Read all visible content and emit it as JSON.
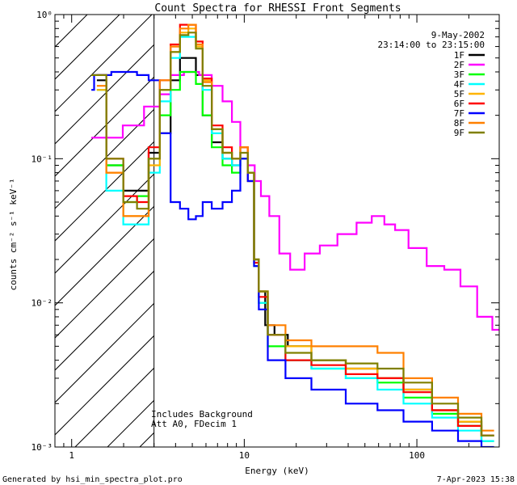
{
  "chart_data": {
    "type": "line",
    "title": "Count Spectra for RHESSI Front Segments",
    "xlabel": "Energy (keV)",
    "ylabel": "counts cm⁻² s⁻¹ keV⁻¹",
    "xscale": "log",
    "yscale": "log",
    "xlim": [
      0.8,
      300
    ],
    "ylim": [
      0.001,
      1.0
    ],
    "x_tick_labels": [
      "1",
      "10",
      "100"
    ],
    "y_tick_labels": [
      "10⁻³",
      "10⁻²",
      "10⁻¹",
      "10⁰"
    ],
    "date": "9-May-2002",
    "time_range": "23:14:00 to 23:15:00",
    "annotations": [
      "Includes Background",
      "Att A0, FDecim 1"
    ],
    "footer_left": "Generated by hsi_min_spectra_plot.pro",
    "footer_right": "7-Apr-2023 15:38",
    "shaded_region": [
      0.8,
      3.0
    ],
    "series": [
      {
        "name": "1F",
        "color": "#000000",
        "points": [
          [
            1.4,
            0.35
          ],
          [
            1.8,
            0.09
          ],
          [
            2.2,
            0.06
          ],
          [
            2.6,
            0.06
          ],
          [
            3,
            0.11
          ],
          [
            3.5,
            0.15
          ],
          [
            4,
            0.35
          ],
          [
            4.5,
            0.5
          ],
          [
            5,
            0.5
          ],
          [
            5.5,
            0.38
          ],
          [
            6,
            0.2
          ],
          [
            7,
            0.13
          ],
          [
            8,
            0.1
          ],
          [
            9,
            0.09
          ],
          [
            10,
            0.1
          ],
          [
            11,
            0.08
          ],
          [
            11.8,
            0.02
          ],
          [
            12.5,
            0.012
          ],
          [
            14,
            0.007
          ],
          [
            16,
            0.006
          ],
          [
            20,
            0.005
          ],
          [
            30,
            0.004
          ],
          [
            50,
            0.0035
          ],
          [
            70,
            0.003
          ],
          [
            100,
            0.0025
          ],
          [
            150,
            0.0018
          ],
          [
            200,
            0.0015
          ],
          [
            280,
            0.0012
          ]
        ]
      },
      {
        "name": "2F",
        "color": "#ff00ff",
        "points": [
          [
            1.3,
            0.14
          ],
          [
            1.7,
            0.14
          ],
          [
            2.3,
            0.17
          ],
          [
            3,
            0.23
          ],
          [
            3.5,
            0.28
          ],
          [
            4,
            0.38
          ],
          [
            5,
            0.4
          ],
          [
            6,
            0.38
          ],
          [
            7,
            0.32
          ],
          [
            8,
            0.25
          ],
          [
            9,
            0.18
          ],
          [
            10,
            0.12
          ],
          [
            11,
            0.09
          ],
          [
            12,
            0.07
          ],
          [
            13,
            0.055
          ],
          [
            15,
            0.04
          ],
          [
            17,
            0.022
          ],
          [
            20,
            0.017
          ],
          [
            25,
            0.022
          ],
          [
            30,
            0.025
          ],
          [
            40,
            0.03
          ],
          [
            50,
            0.036
          ],
          [
            60,
            0.04
          ],
          [
            70,
            0.035
          ],
          [
            80,
            0.032
          ],
          [
            100,
            0.024
          ],
          [
            130,
            0.018
          ],
          [
            160,
            0.017
          ],
          [
            200,
            0.013
          ],
          [
            250,
            0.008
          ],
          [
            300,
            0.0065
          ]
        ]
      },
      {
        "name": "3F",
        "color": "#00ff00",
        "points": [
          [
            1.4,
            0.3
          ],
          [
            1.8,
            0.09
          ],
          [
            2.2,
            0.05
          ],
          [
            2.6,
            0.055
          ],
          [
            3,
            0.1
          ],
          [
            3.5,
            0.2
          ],
          [
            4,
            0.3
          ],
          [
            4.5,
            0.4
          ],
          [
            5,
            0.4
          ],
          [
            5.5,
            0.33
          ],
          [
            6,
            0.2
          ],
          [
            7,
            0.12
          ],
          [
            8,
            0.09
          ],
          [
            9,
            0.08
          ],
          [
            10,
            0.1
          ],
          [
            11,
            0.07
          ],
          [
            11.8,
            0.018
          ],
          [
            12.5,
            0.01
          ],
          [
            15,
            0.005
          ],
          [
            20,
            0.004
          ],
          [
            30,
            0.0035
          ],
          [
            50,
            0.003
          ],
          [
            70,
            0.0028
          ],
          [
            100,
            0.0022
          ],
          [
            150,
            0.0017
          ],
          [
            200,
            0.0014
          ],
          [
            280,
            0.0011
          ]
        ]
      },
      {
        "name": "4F",
        "color": "#00ffff",
        "points": [
          [
            1.4,
            0.3
          ],
          [
            1.8,
            0.06
          ],
          [
            2.2,
            0.035
          ],
          [
            2.6,
            0.035
          ],
          [
            3,
            0.08
          ],
          [
            3.5,
            0.25
          ],
          [
            4,
            0.5
          ],
          [
            4.5,
            0.7
          ],
          [
            5,
            0.7
          ],
          [
            5.5,
            0.6
          ],
          [
            6,
            0.3
          ],
          [
            7,
            0.15
          ],
          [
            8,
            0.1
          ],
          [
            9,
            0.09
          ],
          [
            10,
            0.12
          ],
          [
            11,
            0.08
          ],
          [
            11.8,
            0.02
          ],
          [
            12.5,
            0.01
          ],
          [
            15,
            0.006
          ],
          [
            20,
            0.004
          ],
          [
            30,
            0.0035
          ],
          [
            50,
            0.003
          ],
          [
            70,
            0.0025
          ],
          [
            100,
            0.002
          ],
          [
            150,
            0.0016
          ],
          [
            200,
            0.0013
          ],
          [
            280,
            0.0011
          ]
        ]
      },
      {
        "name": "5F",
        "color": "#ffb400",
        "points": [
          [
            1.4,
            0.3
          ],
          [
            1.8,
            0.08
          ],
          [
            2.2,
            0.04
          ],
          [
            2.6,
            0.04
          ],
          [
            3,
            0.09
          ],
          [
            3.5,
            0.3
          ],
          [
            4,
            0.55
          ],
          [
            4.5,
            0.75
          ],
          [
            5,
            0.8
          ],
          [
            5.5,
            0.6
          ],
          [
            6,
            0.35
          ],
          [
            7,
            0.16
          ],
          [
            8,
            0.11
          ],
          [
            9,
            0.1
          ],
          [
            10,
            0.12
          ],
          [
            11,
            0.08
          ],
          [
            11.8,
            0.02
          ],
          [
            12.5,
            0.012
          ],
          [
            15,
            0.006
          ],
          [
            20,
            0.005
          ],
          [
            30,
            0.004
          ],
          [
            50,
            0.0035
          ],
          [
            70,
            0.003
          ],
          [
            100,
            0.0025
          ],
          [
            150,
            0.0018
          ],
          [
            200,
            0.0015
          ],
          [
            280,
            0.0012
          ]
        ]
      },
      {
        "name": "6F",
        "color": "#ff0000",
        "points": [
          [
            1.4,
            0.38
          ],
          [
            1.8,
            0.1
          ],
          [
            2.2,
            0.055
          ],
          [
            2.6,
            0.05
          ],
          [
            3,
            0.12
          ],
          [
            3.5,
            0.35
          ],
          [
            4,
            0.62
          ],
          [
            4.5,
            0.85
          ],
          [
            5,
            0.85
          ],
          [
            5.5,
            0.65
          ],
          [
            6,
            0.36
          ],
          [
            7,
            0.17
          ],
          [
            8,
            0.12
          ],
          [
            9,
            0.1
          ],
          [
            10,
            0.12
          ],
          [
            11,
            0.07
          ],
          [
            11.8,
            0.019
          ],
          [
            12.5,
            0.011
          ],
          [
            15,
            0.006
          ],
          [
            20,
            0.004
          ],
          [
            30,
            0.0037
          ],
          [
            50,
            0.0032
          ],
          [
            70,
            0.003
          ],
          [
            100,
            0.0024
          ],
          [
            150,
            0.0018
          ],
          [
            200,
            0.0014
          ],
          [
            280,
            0.0012
          ]
        ]
      },
      {
        "name": "7F",
        "color": "#0000ff",
        "points": [
          [
            1.3,
            0.3
          ],
          [
            1.4,
            0.38
          ],
          [
            1.6,
            0.38
          ],
          [
            1.8,
            0.4
          ],
          [
            2.2,
            0.4
          ],
          [
            2.6,
            0.38
          ],
          [
            3,
            0.35
          ],
          [
            3.5,
            0.15
          ],
          [
            4,
            0.05
          ],
          [
            4.5,
            0.045
          ],
          [
            5,
            0.038
          ],
          [
            5.5,
            0.04
          ],
          [
            6,
            0.05
          ],
          [
            7,
            0.045
          ],
          [
            8,
            0.05
          ],
          [
            9,
            0.06
          ],
          [
            10,
            0.1
          ],
          [
            11,
            0.07
          ],
          [
            11.8,
            0.018
          ],
          [
            12.5,
            0.009
          ],
          [
            15,
            0.004
          ],
          [
            20,
            0.003
          ],
          [
            30,
            0.0025
          ],
          [
            50,
            0.002
          ],
          [
            70,
            0.0018
          ],
          [
            100,
            0.0015
          ],
          [
            150,
            0.0013
          ],
          [
            200,
            0.0011
          ],
          [
            280,
            0.001
          ]
        ]
      },
      {
        "name": "8F",
        "color": "#ff8000",
        "points": [
          [
            1.4,
            0.32
          ],
          [
            1.8,
            0.08
          ],
          [
            2.2,
            0.04
          ],
          [
            2.6,
            0.04
          ],
          [
            3,
            0.1
          ],
          [
            3.5,
            0.35
          ],
          [
            4,
            0.6
          ],
          [
            4.5,
            0.8
          ],
          [
            5,
            0.85
          ],
          [
            5.5,
            0.62
          ],
          [
            6,
            0.34
          ],
          [
            7,
            0.16
          ],
          [
            8,
            0.11
          ],
          [
            9,
            0.1
          ],
          [
            10,
            0.12
          ],
          [
            11,
            0.08
          ],
          [
            11.8,
            0.02
          ],
          [
            12.5,
            0.012
          ],
          [
            15,
            0.007
          ],
          [
            20,
            0.0055
          ],
          [
            30,
            0.005
          ],
          [
            50,
            0.005
          ],
          [
            70,
            0.0045
          ],
          [
            100,
            0.003
          ],
          [
            150,
            0.0022
          ],
          [
            200,
            0.0017
          ],
          [
            280,
            0.0013
          ]
        ]
      },
      {
        "name": "9F",
        "color": "#808000",
        "points": [
          [
            1.3,
            0.38
          ],
          [
            1.4,
            0.38
          ],
          [
            1.8,
            0.1
          ],
          [
            2.2,
            0.05
          ],
          [
            2.6,
            0.045
          ],
          [
            3,
            0.1
          ],
          [
            3.5,
            0.3
          ],
          [
            4,
            0.55
          ],
          [
            4.5,
            0.72
          ],
          [
            5,
            0.75
          ],
          [
            5.5,
            0.58
          ],
          [
            6,
            0.32
          ],
          [
            7,
            0.16
          ],
          [
            8,
            0.11
          ],
          [
            9,
            0.1
          ],
          [
            10,
            0.11
          ],
          [
            11,
            0.08
          ],
          [
            11.8,
            0.02
          ],
          [
            12.5,
            0.012
          ],
          [
            15,
            0.006
          ],
          [
            20,
            0.0045
          ],
          [
            30,
            0.004
          ],
          [
            50,
            0.0038
          ],
          [
            70,
            0.0035
          ],
          [
            100,
            0.0028
          ],
          [
            150,
            0.002
          ],
          [
            200,
            0.0016
          ],
          [
            280,
            0.0012
          ]
        ]
      }
    ]
  }
}
